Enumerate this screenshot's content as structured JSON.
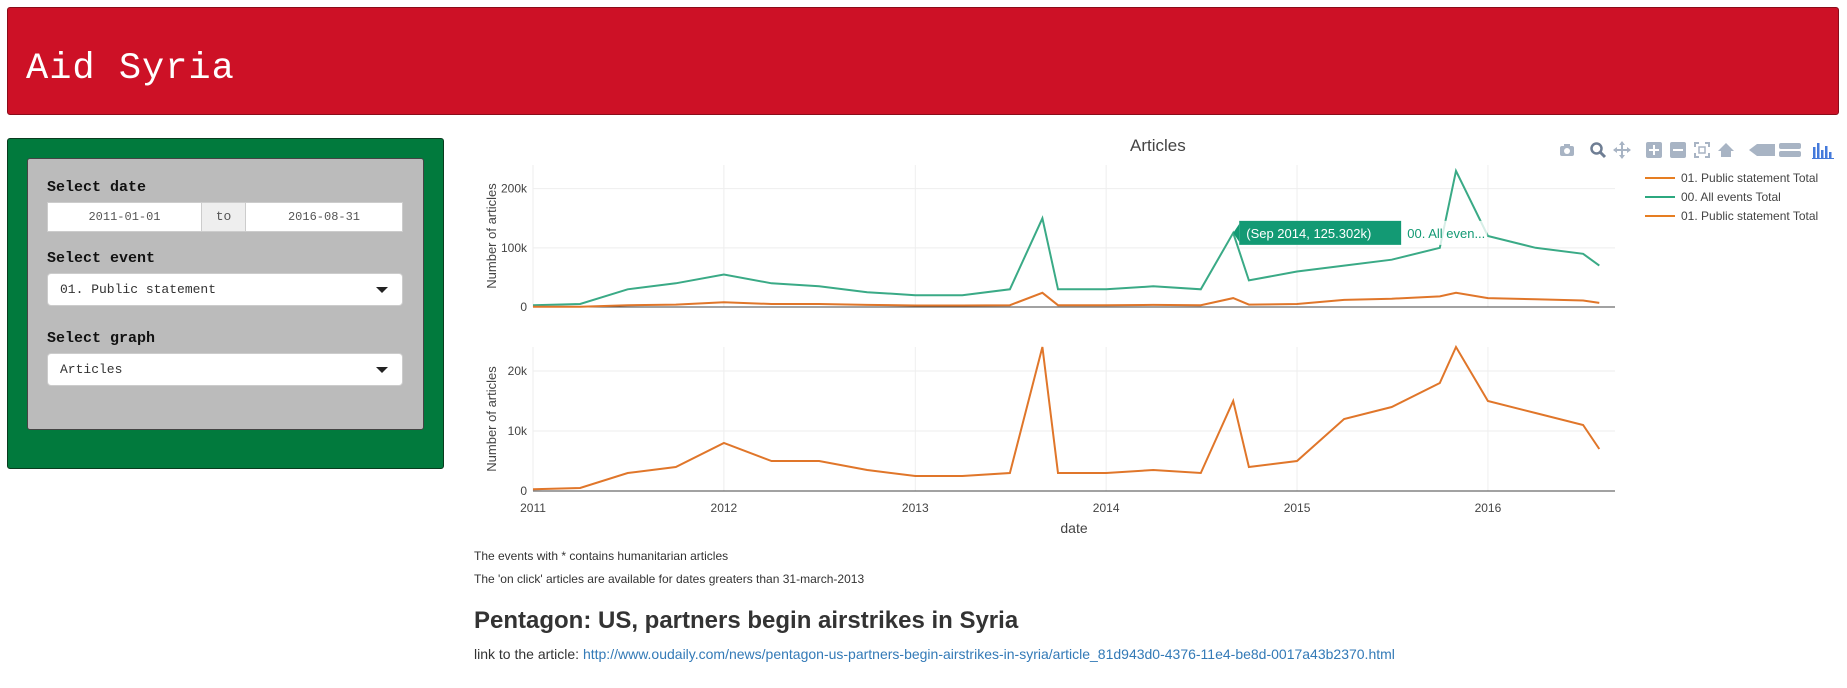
{
  "app": {
    "title": "Aid Syria"
  },
  "sidebar": {
    "date_label": "Select date",
    "date_start": "2011-01-01",
    "date_sep": "to",
    "date_end": "2016-08-31",
    "event_label": "Select event",
    "event_value": "01. Public statement",
    "graph_label": "Select graph",
    "graph_value": "Articles"
  },
  "modebar_icons": [
    "camera-icon",
    "zoom-icon",
    "pan-icon",
    "zoom-in-icon",
    "zoom-out-icon",
    "autoscale-icon",
    "home-icon",
    "spike-lines-icon",
    "compare-hover-icon",
    "plotly-logo-icon"
  ],
  "chart_data": {
    "type": "line",
    "title": "Articles",
    "xlabel": "date",
    "ylabel": "Number of articles",
    "x_ticks": [
      "2011",
      "2012",
      "2013",
      "2014",
      "2015",
      "2016"
    ],
    "top_y_ticks": [
      "0",
      "100k",
      "200k"
    ],
    "bottom_y_ticks": [
      "0",
      "10k",
      "20k"
    ],
    "top_ylim": [
      0,
      240000
    ],
    "bottom_ylim": [
      0,
      24000
    ],
    "legend": [
      "01. Public statement  Total",
      "00. All events Total",
      "01. Public statement  Total"
    ],
    "legend_colors": [
      "#e67e22",
      "#2ca87f",
      "#e67e22"
    ],
    "colors": {
      "all_events": "#3aaa86",
      "public_statement": "#e0762a"
    },
    "hover": {
      "label": "(Sep 2014, 125.302k)",
      "series": "00. All even...",
      "x": "Sep 2014",
      "y": 125302
    },
    "series": [
      {
        "name": "00. All events Total",
        "x": [
          "2011-01",
          "2011-04",
          "2011-07",
          "2011-10",
          "2012-01",
          "2012-04",
          "2012-07",
          "2012-10",
          "2013-01",
          "2013-04",
          "2013-07",
          "2013-09",
          "2013-10",
          "2014-01",
          "2014-04",
          "2014-07",
          "2014-09",
          "2014-10",
          "2015-01",
          "2015-04",
          "2015-07",
          "2015-10",
          "2015-11",
          "2016-01",
          "2016-04",
          "2016-07",
          "2016-08"
        ],
        "y": [
          3000,
          5000,
          30000,
          40000,
          55000,
          40000,
          35000,
          25000,
          20000,
          20000,
          30000,
          150000,
          30000,
          30000,
          35000,
          30000,
          125302,
          45000,
          60000,
          70000,
          80000,
          100000,
          230000,
          120000,
          100000,
          90000,
          70000
        ]
      },
      {
        "name": "01. Public statement  Total",
        "x": [
          "2011-01",
          "2011-04",
          "2011-07",
          "2011-10",
          "2012-01",
          "2012-04",
          "2012-07",
          "2012-10",
          "2013-01",
          "2013-04",
          "2013-07",
          "2013-09",
          "2013-10",
          "2014-01",
          "2014-04",
          "2014-07",
          "2014-09",
          "2014-10",
          "2015-01",
          "2015-04",
          "2015-07",
          "2015-10",
          "2015-11",
          "2016-01",
          "2016-04",
          "2016-07",
          "2016-08"
        ],
        "y": [
          300,
          500,
          3000,
          4000,
          8000,
          5000,
          5000,
          3500,
          2500,
          2500,
          3000,
          24000,
          3000,
          3000,
          3500,
          3000,
          15000,
          4000,
          5000,
          12000,
          14000,
          18000,
          24000,
          15000,
          13000,
          11000,
          7000
        ]
      }
    ]
  },
  "notes": [
    "The events with * contains humanitarian articles",
    "The 'on click' articles are available for dates greaters than 31-march-2013"
  ],
  "article": {
    "title": "Pentagon: US, partners begin airstrikes in Syria",
    "link_prefix": "link to the article:",
    "url": "http://www.oudaily.com/news/pentagon-us-partners-begin-airstrikes-in-syria/article_81d943d0-4376-11e4-be8d-0017a43b2370.html"
  }
}
